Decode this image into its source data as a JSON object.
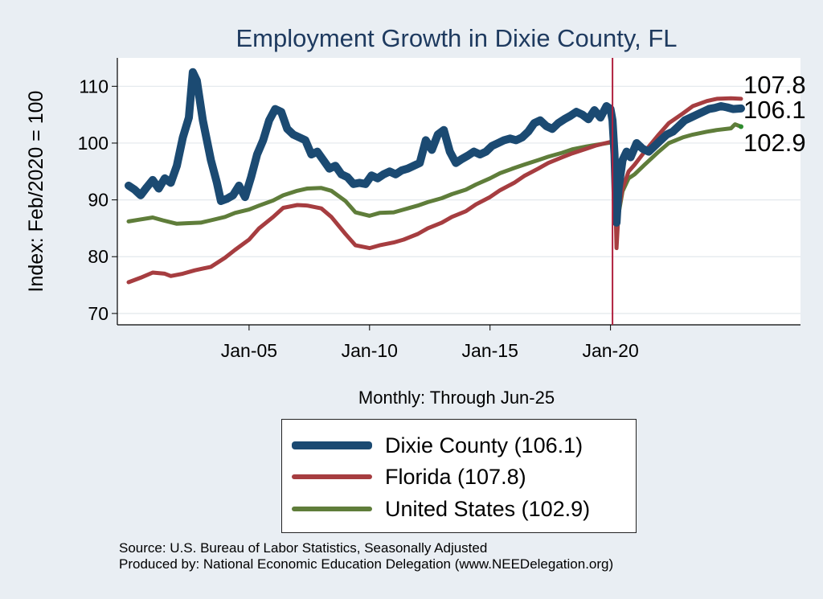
{
  "chart_data": {
    "type": "line",
    "title": "Employment Growth in Dixie  County, FL",
    "xlabel": "Monthly: Through Jun-25",
    "ylabel": "Index: Feb/2020 = 100",
    "x_range": [
      "2000-01",
      "2025-06"
    ],
    "ylim": [
      68,
      115
    ],
    "y_ticks": [
      70,
      80,
      90,
      100,
      110
    ],
    "x_ticks": [
      {
        "date": "2005-01",
        "label": "Jan-05"
      },
      {
        "date": "2010-01",
        "label": "Jan-10"
      },
      {
        "date": "2015-01",
        "label": "Jan-15"
      },
      {
        "date": "2020-01",
        "label": "Jan-20"
      }
    ],
    "reference_line": {
      "date": "2020-02",
      "color": "#b0203e"
    },
    "grid": "horizontal",
    "legend_position": "bottom",
    "series": [
      {
        "name": "Dixie  County (106.1)",
        "end_label": "106.1",
        "color": "#1b4a72",
        "points": [
          [
            "2000-01",
            92.5
          ],
          [
            "2000-04",
            91.8
          ],
          [
            "2000-07",
            90.8
          ],
          [
            "2000-10",
            92.2
          ],
          [
            "2001-01",
            93.5
          ],
          [
            "2001-04",
            92.0
          ],
          [
            "2001-07",
            93.8
          ],
          [
            "2001-10",
            93.0
          ],
          [
            "2002-01",
            96.0
          ],
          [
            "2002-04",
            101.0
          ],
          [
            "2002-07",
            104.5
          ],
          [
            "2002-09",
            112.5
          ],
          [
            "2002-11",
            111.0
          ],
          [
            "2003-02",
            104.0
          ],
          [
            "2003-06",
            97.0
          ],
          [
            "2003-09",
            93.0
          ],
          [
            "2003-11",
            89.8
          ],
          [
            "2004-02",
            90.2
          ],
          [
            "2004-05",
            90.8
          ],
          [
            "2004-08",
            92.5
          ],
          [
            "2004-11",
            90.5
          ],
          [
            "2005-02",
            94.0
          ],
          [
            "2005-05",
            98.0
          ],
          [
            "2005-08",
            100.5
          ],
          [
            "2005-11",
            104.0
          ],
          [
            "2006-02",
            106.0
          ],
          [
            "2006-05",
            105.5
          ],
          [
            "2006-08",
            102.5
          ],
          [
            "2006-11",
            101.5
          ],
          [
            "2007-02",
            101.0
          ],
          [
            "2007-05",
            100.5
          ],
          [
            "2007-08",
            98.0
          ],
          [
            "2007-11",
            98.5
          ],
          [
            "2008-02",
            97.0
          ],
          [
            "2008-05",
            95.5
          ],
          [
            "2008-08",
            96.0
          ],
          [
            "2008-11",
            94.5
          ],
          [
            "2009-02",
            94.0
          ],
          [
            "2009-05",
            92.8
          ],
          [
            "2009-08",
            93.0
          ],
          [
            "2009-11",
            92.8
          ],
          [
            "2010-02",
            94.3
          ],
          [
            "2010-05",
            93.8
          ],
          [
            "2010-08",
            94.5
          ],
          [
            "2010-11",
            95.0
          ],
          [
            "2011-02",
            94.5
          ],
          [
            "2011-05",
            95.2
          ],
          [
            "2011-08",
            95.5
          ],
          [
            "2011-11",
            96.0
          ],
          [
            "2012-02",
            96.5
          ],
          [
            "2012-05",
            100.5
          ],
          [
            "2012-08",
            98.8
          ],
          [
            "2012-11",
            101.5
          ],
          [
            "2013-02",
            102.3
          ],
          [
            "2013-05",
            98.5
          ],
          [
            "2013-08",
            96.5
          ],
          [
            "2013-11",
            97.2
          ],
          [
            "2014-02",
            97.8
          ],
          [
            "2014-05",
            98.5
          ],
          [
            "2014-08",
            98.0
          ],
          [
            "2014-11",
            98.5
          ],
          [
            "2015-02",
            99.5
          ],
          [
            "2015-05",
            100.0
          ],
          [
            "2015-08",
            100.5
          ],
          [
            "2015-11",
            100.8
          ],
          [
            "2016-02",
            100.5
          ],
          [
            "2016-05",
            101.0
          ],
          [
            "2016-08",
            102.0
          ],
          [
            "2016-11",
            103.5
          ],
          [
            "2017-02",
            104.0
          ],
          [
            "2017-05",
            103.0
          ],
          [
            "2017-08",
            102.5
          ],
          [
            "2017-11",
            103.5
          ],
          [
            "2018-02",
            104.2
          ],
          [
            "2018-05",
            104.8
          ],
          [
            "2018-08",
            105.5
          ],
          [
            "2018-11",
            105.0
          ],
          [
            "2019-02",
            104.2
          ],
          [
            "2019-05",
            105.8
          ],
          [
            "2019-08",
            104.5
          ],
          [
            "2019-11",
            106.5
          ],
          [
            "2020-01",
            106.0
          ],
          [
            "2020-02",
            104.0
          ],
          [
            "2020-03",
            98.0
          ],
          [
            "2020-04",
            86.0
          ],
          [
            "2020-05",
            92.0
          ],
          [
            "2020-07",
            97.0
          ],
          [
            "2020-09",
            98.5
          ],
          [
            "2020-11",
            97.5
          ],
          [
            "2021-02",
            100.0
          ],
          [
            "2021-05",
            99.0
          ],
          [
            "2021-08",
            98.5
          ],
          [
            "2021-11",
            99.5
          ],
          [
            "2022-02",
            100.5
          ],
          [
            "2022-05",
            101.5
          ],
          [
            "2022-08",
            102.0
          ],
          [
            "2022-11",
            103.0
          ],
          [
            "2023-02",
            104.0
          ],
          [
            "2023-05",
            104.5
          ],
          [
            "2023-08",
            105.0
          ],
          [
            "2023-11",
            105.5
          ],
          [
            "2024-02",
            106.0
          ],
          [
            "2024-05",
            106.2
          ],
          [
            "2024-08",
            106.5
          ],
          [
            "2024-11",
            106.3
          ],
          [
            "2025-02",
            106.0
          ],
          [
            "2025-06",
            106.1
          ]
        ]
      },
      {
        "name": "Florida (107.8)",
        "end_label": "107.8",
        "color": "#a63d40",
        "points": [
          [
            "2000-01",
            75.5
          ],
          [
            "2000-07",
            76.3
          ],
          [
            "2001-01",
            77.2
          ],
          [
            "2001-07",
            77.0
          ],
          [
            "2001-10",
            76.6
          ],
          [
            "2002-04",
            77.0
          ],
          [
            "2002-10",
            77.6
          ],
          [
            "2003-06",
            78.2
          ],
          [
            "2004-01",
            79.8
          ],
          [
            "2004-06",
            81.2
          ],
          [
            "2005-01",
            83.0
          ],
          [
            "2005-06",
            85.0
          ],
          [
            "2006-01",
            87.0
          ],
          [
            "2006-06",
            88.6
          ],
          [
            "2007-01",
            89.1
          ],
          [
            "2007-06",
            89.0
          ],
          [
            "2008-01",
            88.5
          ],
          [
            "2008-06",
            87.0
          ],
          [
            "2009-01",
            84.0
          ],
          [
            "2009-06",
            82.0
          ],
          [
            "2010-01",
            81.5
          ],
          [
            "2010-06",
            82.0
          ],
          [
            "2011-01",
            82.5
          ],
          [
            "2011-06",
            83.0
          ],
          [
            "2012-01",
            84.0
          ],
          [
            "2012-06",
            85.0
          ],
          [
            "2013-01",
            86.0
          ],
          [
            "2013-06",
            87.0
          ],
          [
            "2014-01",
            88.0
          ],
          [
            "2014-06",
            89.2
          ],
          [
            "2015-01",
            90.5
          ],
          [
            "2015-06",
            91.7
          ],
          [
            "2016-01",
            93.0
          ],
          [
            "2016-06",
            94.2
          ],
          [
            "2017-01",
            95.5
          ],
          [
            "2017-06",
            96.5
          ],
          [
            "2018-01",
            97.5
          ],
          [
            "2018-06",
            98.2
          ],
          [
            "2019-01",
            99.0
          ],
          [
            "2019-06",
            99.6
          ],
          [
            "2020-01",
            100.2
          ],
          [
            "2020-02",
            100.0
          ],
          [
            "2020-03",
            97.0
          ],
          [
            "2020-04",
            81.5
          ],
          [
            "2020-05",
            88.0
          ],
          [
            "2020-07",
            92.0
          ],
          [
            "2020-10",
            95.0
          ],
          [
            "2021-01",
            96.2
          ],
          [
            "2021-06",
            98.5
          ],
          [
            "2022-01",
            101.5
          ],
          [
            "2022-06",
            103.5
          ],
          [
            "2023-01",
            105.2
          ],
          [
            "2023-06",
            106.5
          ],
          [
            "2024-01",
            107.4
          ],
          [
            "2024-06",
            107.8
          ],
          [
            "2025-01",
            107.9
          ],
          [
            "2025-06",
            107.8
          ]
        ]
      },
      {
        "name": "United States (102.9)",
        "end_label": "102.9",
        "color": "#5f7d3a",
        "points": [
          [
            "2000-01",
            86.2
          ],
          [
            "2000-06",
            86.5
          ],
          [
            "2001-01",
            86.9
          ],
          [
            "2001-06",
            86.4
          ],
          [
            "2002-01",
            85.8
          ],
          [
            "2002-06",
            85.9
          ],
          [
            "2003-01",
            86.0
          ],
          [
            "2003-06",
            86.4
          ],
          [
            "2004-01",
            87.0
          ],
          [
            "2004-06",
            87.7
          ],
          [
            "2005-01",
            88.3
          ],
          [
            "2005-06",
            89.0
          ],
          [
            "2006-01",
            89.9
          ],
          [
            "2006-06",
            90.8
          ],
          [
            "2007-01",
            91.6
          ],
          [
            "2007-06",
            92.0
          ],
          [
            "2008-01",
            92.1
          ],
          [
            "2008-06",
            91.6
          ],
          [
            "2009-01",
            89.8
          ],
          [
            "2009-06",
            87.8
          ],
          [
            "2010-01",
            87.2
          ],
          [
            "2010-06",
            87.7
          ],
          [
            "2011-01",
            87.8
          ],
          [
            "2011-06",
            88.3
          ],
          [
            "2012-01",
            89.0
          ],
          [
            "2012-06",
            89.6
          ],
          [
            "2013-01",
            90.3
          ],
          [
            "2013-06",
            91.0
          ],
          [
            "2014-01",
            91.8
          ],
          [
            "2014-06",
            92.7
          ],
          [
            "2015-01",
            93.8
          ],
          [
            "2015-06",
            94.7
          ],
          [
            "2016-01",
            95.6
          ],
          [
            "2016-06",
            96.2
          ],
          [
            "2017-01",
            97.0
          ],
          [
            "2017-06",
            97.6
          ],
          [
            "2018-01",
            98.3
          ],
          [
            "2018-06",
            98.9
          ],
          [
            "2019-01",
            99.4
          ],
          [
            "2019-06",
            99.7
          ],
          [
            "2020-01",
            100.1
          ],
          [
            "2020-02",
            100.0
          ],
          [
            "2020-03",
            99.0
          ],
          [
            "2020-04",
            85.5
          ],
          [
            "2020-05",
            87.5
          ],
          [
            "2020-07",
            91.5
          ],
          [
            "2020-10",
            93.8
          ],
          [
            "2021-01",
            94.5
          ],
          [
            "2021-06",
            96.2
          ],
          [
            "2022-01",
            98.5
          ],
          [
            "2022-06",
            100.0
          ],
          [
            "2023-01",
            101.0
          ],
          [
            "2023-06",
            101.5
          ],
          [
            "2024-01",
            102.0
          ],
          [
            "2024-06",
            102.3
          ],
          [
            "2025-01",
            102.6
          ],
          [
            "2025-03",
            103.3
          ],
          [
            "2025-06",
            102.9
          ]
        ]
      }
    ]
  },
  "source_lines": [
    "Source: U.S. Bureau of Labor Statistics, Seasonally Adjusted",
    "Produced by: National Economic Education Delegation (www.NEEDelegation.org)"
  ]
}
